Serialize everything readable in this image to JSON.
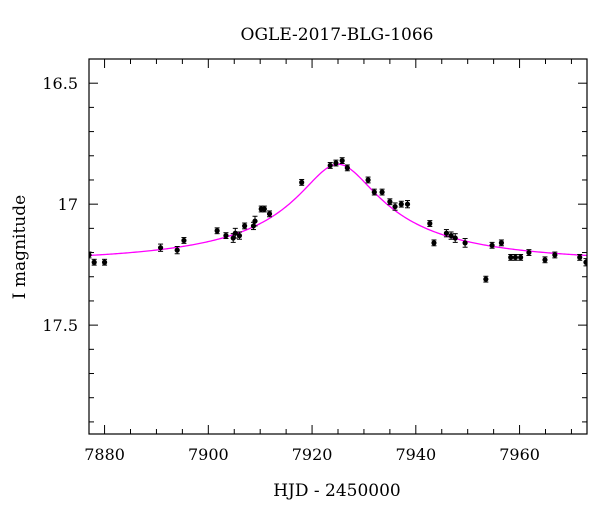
{
  "chart_data": {
    "type": "scatter",
    "title": "OGLE-2017-BLG-1066",
    "xlabel": "HJD - 2450000",
    "ylabel": "I magnitude",
    "xlim": [
      7877,
      7973
    ],
    "ylim": [
      17.95,
      16.4
    ],
    "y_inverted": true,
    "x_ticks": [
      7880,
      7900,
      7920,
      7940,
      7960
    ],
    "x_tick_labels": [
      "7880",
      "7900",
      "7920",
      "7940",
      "7960"
    ],
    "x_minor_step": 5,
    "y_ticks": [
      16.5,
      17,
      17.5
    ],
    "y_tick_labels": [
      "16.5",
      "17",
      "17.5"
    ],
    "y_minor_step": 0.1,
    "grid": false,
    "colors": {
      "data": "#000000",
      "model": "#ff00ff"
    },
    "model": {
      "name": "",
      "t0": 7925.0,
      "baseline": 17.245,
      "peak": 16.835,
      "width": 7.0
    },
    "series": [
      {
        "name": "",
        "x": [
          7877.0,
          7878.0,
          7880.0,
          7890.8,
          7894.0,
          7895.3,
          7901.7,
          7903.4,
          7904.8,
          7905.2,
          7906.0,
          7907.0,
          7908.7,
          7909.0,
          7910.2,
          7910.8,
          7911.8,
          7918.0,
          7923.5,
          7924.6,
          7925.8,
          7926.8,
          7930.8,
          7932.0,
          7933.5,
          7935.0,
          7936.0,
          7937.2,
          7938.4,
          7942.7,
          7943.5,
          7945.9,
          7946.8,
          7947.6,
          7949.5,
          7953.5,
          7954.7,
          7956.5,
          7958.3,
          7959.2,
          7960.2,
          7961.8,
          7964.9,
          7966.8,
          7971.6,
          7972.8
        ],
        "y": [
          17.21,
          17.24,
          17.24,
          17.18,
          17.19,
          17.15,
          17.11,
          17.13,
          17.14,
          17.12,
          17.13,
          17.09,
          17.09,
          17.07,
          17.02,
          17.02,
          17.04,
          16.91,
          16.84,
          16.83,
          16.82,
          16.85,
          16.9,
          16.95,
          16.95,
          16.99,
          17.01,
          17.0,
          17.0,
          17.08,
          17.16,
          17.12,
          17.13,
          17.14,
          17.16,
          17.31,
          17.17,
          17.16,
          17.22,
          17.22,
          17.22,
          17.2,
          17.23,
          17.21,
          17.22,
          17.24
        ],
        "err": [
          0.012,
          0.012,
          0.012,
          0.015,
          0.015,
          0.012,
          0.012,
          0.012,
          0.018,
          0.02,
          0.015,
          0.012,
          0.015,
          0.02,
          0.012,
          0.012,
          0.012,
          0.012,
          0.012,
          0.012,
          0.012,
          0.012,
          0.012,
          0.012,
          0.012,
          0.012,
          0.015,
          0.012,
          0.015,
          0.012,
          0.012,
          0.015,
          0.015,
          0.018,
          0.018,
          0.012,
          0.012,
          0.012,
          0.012,
          0.012,
          0.012,
          0.012,
          0.012,
          0.012,
          0.012,
          0.015
        ]
      }
    ]
  }
}
